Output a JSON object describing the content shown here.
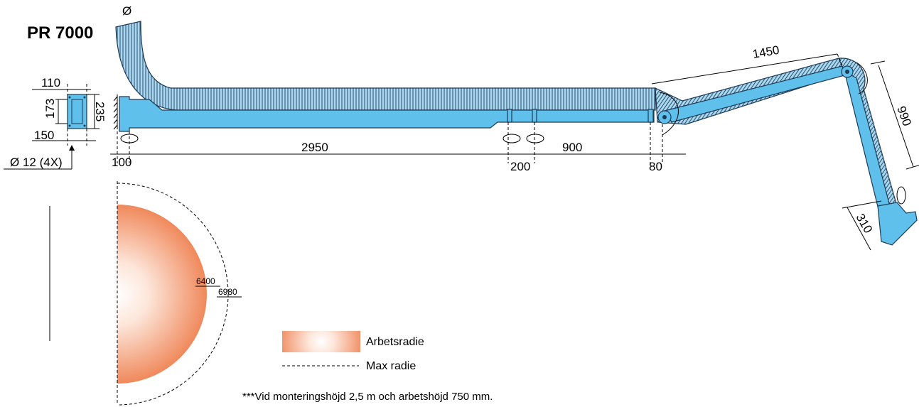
{
  "title": "PR 7000",
  "diameter_symbol": "Ø",
  "dimensions": {
    "bracket_width": "110",
    "bracket_inner": "173",
    "bracket_height": "235",
    "bracket_depth": "150",
    "bolt_holes": "Ø 12 (4X)",
    "offset_wall": "100",
    "arm_length": "2950",
    "joint_gap": "200",
    "segment": "900",
    "joint_end": "80",
    "upper_arm": "1450",
    "lower_arm": "990",
    "hood": "310"
  },
  "radius": {
    "work_radius_value": "6400",
    "max_radius_value": "6980"
  },
  "legend": {
    "work_radius_label": "Arbetsradie",
    "max_radius_label": "Max radie"
  },
  "note": "***Vid monteringshöjd 2,5 m och arbetshöjd 750 mm.",
  "colors": {
    "arm_blue": "#5fc0ec",
    "hose_blue": "#a9d8f0",
    "outline": "#1d3a55",
    "radius_orange": "#f08a5d"
  }
}
